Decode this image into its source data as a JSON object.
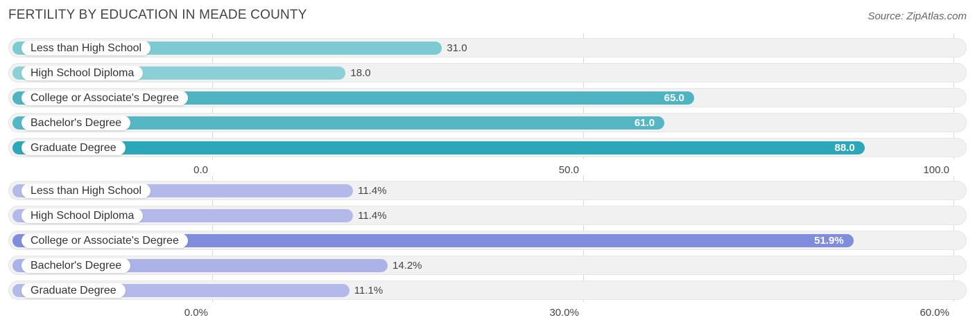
{
  "title": "FERTILITY BY EDUCATION IN MEADE COUNTY",
  "source": "Source: ZipAtlas.com",
  "chart_data": [
    {
      "type": "bar",
      "orientation": "horizontal",
      "categories": [
        "Less than High School",
        "High School Diploma",
        "College or Associate's Degree",
        "Bachelor's Degree",
        "Graduate Degree"
      ],
      "values": [
        31.0,
        18.0,
        65.0,
        61.0,
        88.0
      ],
      "value_labels": [
        "31.0",
        "18.0",
        "65.0",
        "61.0",
        "88.0"
      ],
      "xlim": [
        0,
        100
      ],
      "ticks": [
        0,
        50,
        100
      ],
      "tick_labels": [
        "0.0",
        "50.0",
        "100.0"
      ],
      "colors": [
        "#7ccad2",
        "#8ccfd7",
        "#4fb4c2",
        "#55b6c4",
        "#2aa7b8"
      ],
      "grid": true
    },
    {
      "type": "bar",
      "orientation": "horizontal",
      "categories": [
        "Less than High School",
        "High School Diploma",
        "College or Associate's Degree",
        "Bachelor's Degree",
        "Graduate Degree"
      ],
      "values": [
        11.4,
        11.4,
        51.9,
        14.2,
        11.1
      ],
      "value_labels": [
        "11.4%",
        "11.4%",
        "51.9%",
        "14.2%",
        "11.1%"
      ],
      "xlim": [
        0,
        60
      ],
      "ticks": [
        0,
        30,
        60
      ],
      "tick_labels": [
        "0.0%",
        "30.0%",
        "60.0%"
      ],
      "colors": [
        "#b3baea",
        "#b3baea",
        "#7f8ddc",
        "#aab2e8",
        "#b3baea"
      ],
      "grid": true
    }
  ]
}
